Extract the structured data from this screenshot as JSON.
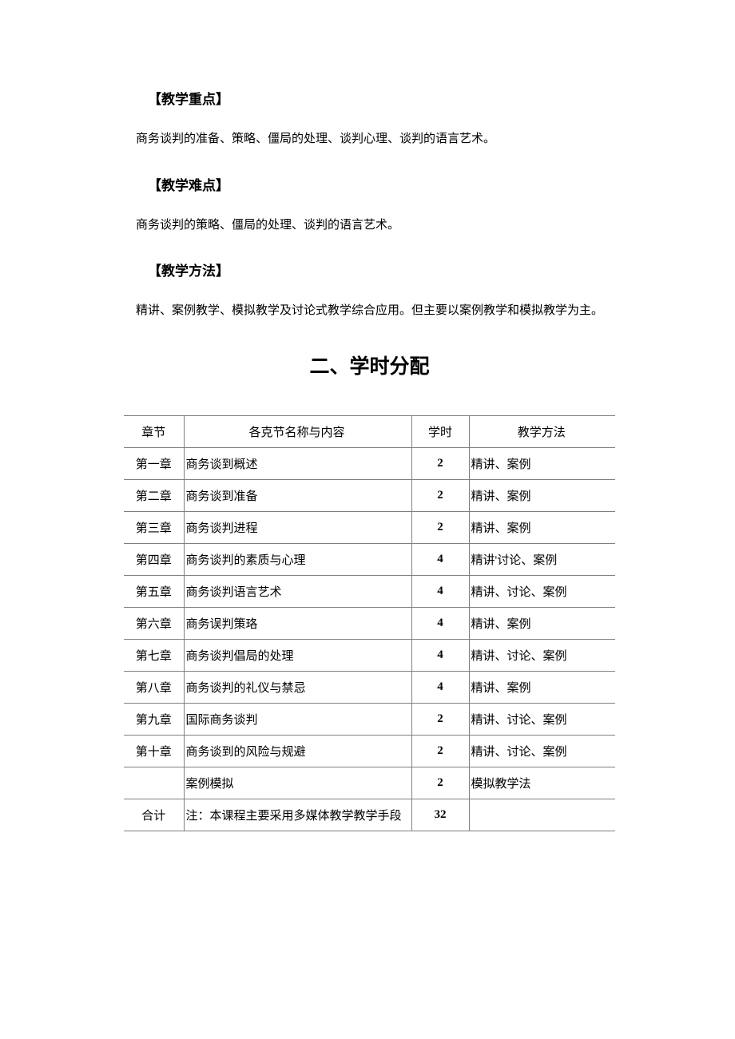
{
  "sections": {
    "keypoints": {
      "heading": "【教学重点】",
      "text": "商务谈判的准备、策略、僵局的处理、谈判心理、谈判的语言艺术。"
    },
    "difficulties": {
      "heading": "【教学难点】",
      "text": "商务谈判的策略、僵局的处理、谈判的语言艺术。"
    },
    "methods": {
      "heading": "【教学方法】",
      "text": "精讲、案例教学、模拟教学及讨论式教学综合应用。但主要以案例教学和模拟教学为主。"
    }
  },
  "mainTitle": "二、学时分配",
  "table": {
    "headers": {
      "chapter": "章节",
      "content": "各克节名称与内容",
      "hours": "学时",
      "method": "教学方法"
    },
    "rows": [
      {
        "chapter": "第一章",
        "content": "商务谈到概述",
        "hours": "2",
        "method": "精讲、案例"
      },
      {
        "chapter": "第二章",
        "content": "商务谈到准备",
        "hours": "2",
        "method": "精讲、案例"
      },
      {
        "chapter": "第三章",
        "content": "商务谈判进程",
        "hours": "2",
        "method": "精讲、案例"
      },
      {
        "chapter": "第四章",
        "content": "商务谈判的素质与心理",
        "hours": "4",
        "method": "精讲'讨论、案例"
      },
      {
        "chapter": "第五章",
        "content": "商务谈判语言艺术",
        "hours": "4",
        "method": "精讲、讨论、案例"
      },
      {
        "chapter": "第六章",
        "content": "商务误判策珞",
        "hours": "4",
        "method": "精讲、案例"
      },
      {
        "chapter": "第七章",
        "content": "商务谈判倡局的处理",
        "hours": "4",
        "method": "精讲、讨论、案例"
      },
      {
        "chapter": "第八章",
        "content": "商务谈判的礼仪与禁忌",
        "hours": "4",
        "method": "精讲、案例"
      },
      {
        "chapter": "第九章",
        "content": "国际商务谈判",
        "hours": "2",
        "method": "精讲、讨论、案例"
      },
      {
        "chapter": "第十章",
        "content": "商务谈到的风险与规避",
        "hours": "2",
        "method": "精讲、讨论、案例"
      },
      {
        "chapter": "",
        "content": "案例模拟",
        "hours": "2",
        "method": "模拟教学法"
      }
    ],
    "total": {
      "chapter": "合计",
      "content": "注：本课程主要采用多媒体教学教学手段",
      "hours": "32",
      "method": ""
    }
  }
}
